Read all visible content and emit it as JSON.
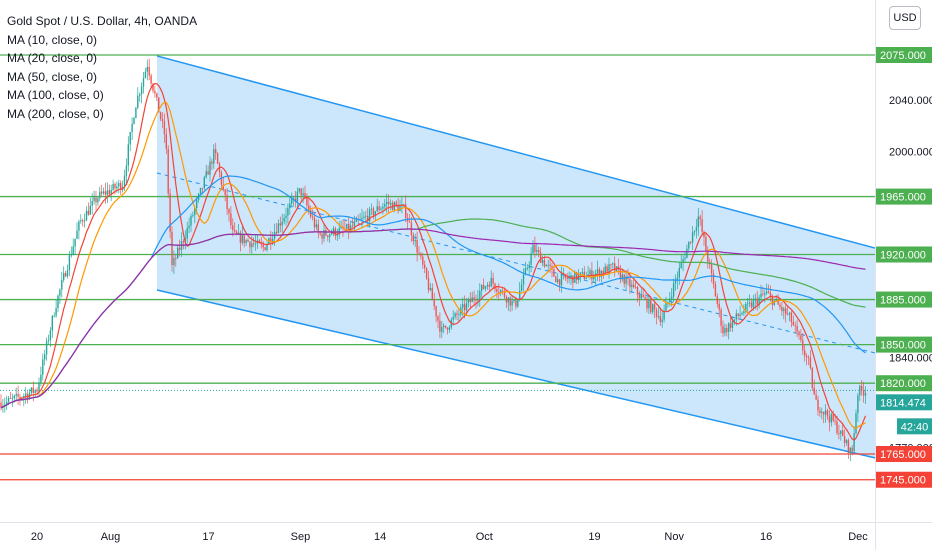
{
  "header": {
    "symbol_title": "Gold Spot / U.S. Dollar, 4h, OANDA",
    "indicators": [
      "MA (10, close, 0)",
      "MA (20, close, 0)",
      "MA (50, close, 0)",
      "MA (100, close, 0)",
      "MA (200, close, 0)"
    ],
    "currency_button": "USD"
  },
  "colors": {
    "up_candle": "#26a69a",
    "down_candle": "#ef5350",
    "channel_fill": "#bbdefb",
    "channel_line": "#2196f3",
    "level_green": "#4caf50",
    "level_red": "#f44336",
    "ma10": "#f44336",
    "ma20": "#ff9800",
    "ma50": "#2196f3",
    "ma100": "#4caf50",
    "ma200": "#9c27b0"
  },
  "chart_data": {
    "type": "candlestick",
    "ylim": [
      1760,
      2098
    ],
    "y_ticks": [
      1770,
      1840,
      2000,
      2040
    ],
    "x_ticks": [
      "20",
      "Aug",
      "17",
      "Sep",
      "14",
      "Oct",
      "19",
      "Nov",
      "16",
      "Dec"
    ],
    "support_resistance_levels": [
      {
        "label": "2075.000",
        "value": 2075.0,
        "color": "green"
      },
      {
        "label": "1965.000",
        "value": 1965.0,
        "color": "green"
      },
      {
        "label": "1920.000",
        "value": 1920.0,
        "color": "green"
      },
      {
        "label": "1885.000",
        "value": 1885.0,
        "color": "green"
      },
      {
        "label": "1850.000",
        "value": 1850.0,
        "color": "green"
      },
      {
        "label": "1820.000",
        "value": 1820.0,
        "color": "green"
      },
      {
        "label": "1765.000",
        "value": 1765.0,
        "color": "red"
      },
      {
        "label": "1745.000",
        "value": 1745.0,
        "color": "red"
      }
    ],
    "current_price": {
      "label": "1814.474",
      "value": 1814.474
    },
    "countdown": "42:40",
    "descending_channel": {
      "upper_start": {
        "x": "Aug",
        "y": 2075
      },
      "upper_end": {
        "x": "Dec",
        "y": 1925
      },
      "lower_start": {
        "x": "Aug",
        "y": 1893
      },
      "lower_end": {
        "x": "Dec",
        "y": 1764
      }
    },
    "price_path": [
      {
        "t": "Jul 15",
        "close": 1805
      },
      {
        "t": "Jul 20",
        "close": 1815
      },
      {
        "t": "Jul 23",
        "close": 1880
      },
      {
        "t": "Jul 27",
        "close": 1945
      },
      {
        "t": "Jul 30",
        "close": 1965
      },
      {
        "t": "Aug 3",
        "close": 1975
      },
      {
        "t": "Aug 5",
        "close": 2035
      },
      {
        "t": "Aug 7",
        "close": 2068
      },
      {
        "t": "Aug 10",
        "close": 2010
      },
      {
        "t": "Aug 11",
        "close": 1910
      },
      {
        "t": "Aug 14",
        "close": 1945
      },
      {
        "t": "Aug 18",
        "close": 2000
      },
      {
        "t": "Aug 21",
        "close": 1935
      },
      {
        "t": "Aug 26",
        "close": 1925
      },
      {
        "t": "Sep 1",
        "close": 1970
      },
      {
        "t": "Sep 4",
        "close": 1935
      },
      {
        "t": "Sep 9",
        "close": 1940
      },
      {
        "t": "Sep 15",
        "close": 1960
      },
      {
        "t": "Sep 18",
        "close": 1955
      },
      {
        "t": "Sep 21",
        "close": 1910
      },
      {
        "t": "Sep 24",
        "close": 1860
      },
      {
        "t": "Sep 28",
        "close": 1880
      },
      {
        "t": "Oct 2",
        "close": 1900
      },
      {
        "t": "Oct 6",
        "close": 1880
      },
      {
        "t": "Oct 9",
        "close": 1925
      },
      {
        "t": "Oct 13",
        "close": 1900
      },
      {
        "t": "Oct 19",
        "close": 1905
      },
      {
        "t": "Oct 22",
        "close": 1910
      },
      {
        "t": "Oct 28",
        "close": 1880
      },
      {
        "t": "Oct 30",
        "close": 1870
      },
      {
        "t": "Nov 5",
        "close": 1950
      },
      {
        "t": "Nov 9",
        "close": 1860
      },
      {
        "t": "Nov 12",
        "close": 1875
      },
      {
        "t": "Nov 16",
        "close": 1890
      },
      {
        "t": "Nov 20",
        "close": 1870
      },
      {
        "t": "Nov 23",
        "close": 1835
      },
      {
        "t": "Nov 24",
        "close": 1805
      },
      {
        "t": "Nov 27",
        "close": 1790
      },
      {
        "t": "Nov 30",
        "close": 1765
      },
      {
        "t": "Dec 1",
        "close": 1814
      }
    ]
  }
}
